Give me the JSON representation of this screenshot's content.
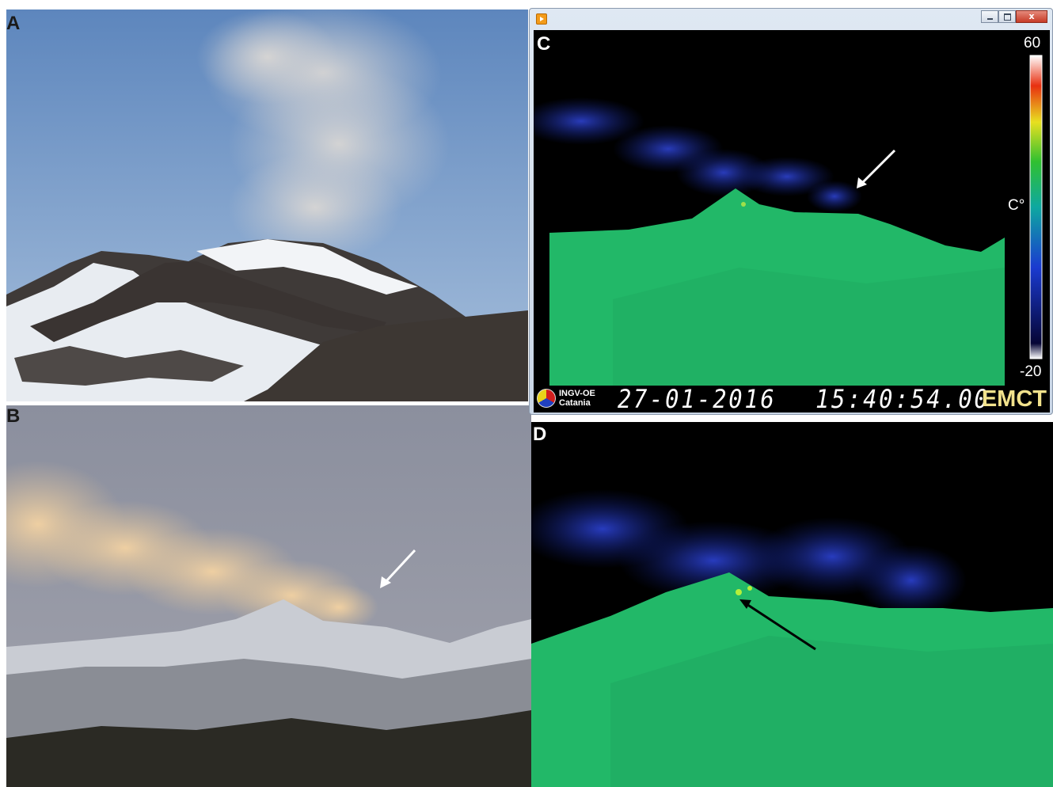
{
  "panels": {
    "a": {
      "letter": "A"
    },
    "b": {
      "letter": "B"
    },
    "c": {
      "letter": "C"
    },
    "d": {
      "letter": "D"
    }
  },
  "thermal_window": {
    "window_buttons": {
      "minimize": "minimize",
      "maximize": "maximize",
      "close": "x"
    },
    "scale": {
      "max": "60",
      "min": "-20",
      "unit": "C°"
    },
    "status": {
      "logo_line1": "INGV-OE",
      "logo_line2": "Catania",
      "date": "27-01-2016",
      "time": "15:40:54.00",
      "station": "EMCT"
    }
  },
  "colors": {
    "sky_a": "#6f95c5",
    "sky_b": "#8d92a5",
    "thermal_ground": "#22b868",
    "thermal_plume": "#1a2ba8",
    "thermal_background": "#000000",
    "arrow_white": "#ffffff",
    "arrow_black": "#000000"
  },
  "icons": [
    "app-icon",
    "minimize-icon",
    "maximize-icon",
    "close-icon",
    "ingv-logo-icon"
  ]
}
